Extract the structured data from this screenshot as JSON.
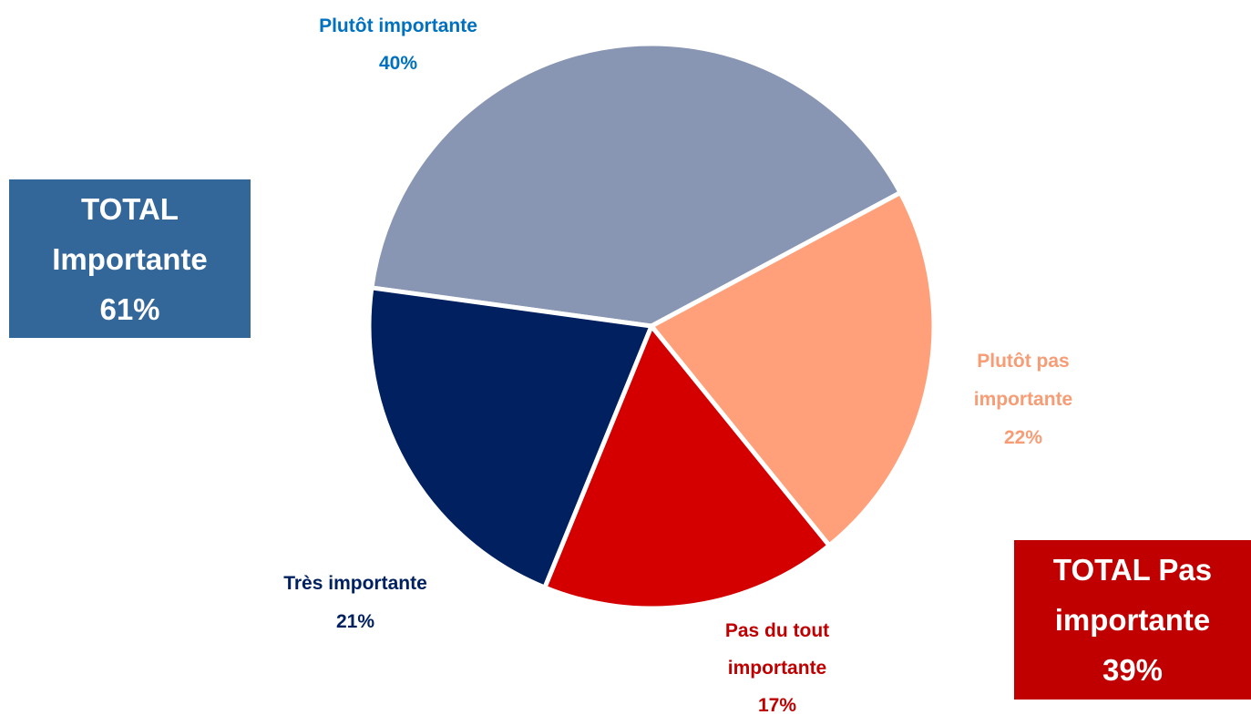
{
  "chart_data": {
    "type": "pie",
    "categories": [
      "Plutôt importante",
      "Plutôt pas importante",
      "Pas du tout importante",
      "Très importante"
    ],
    "values": [
      40,
      22,
      17,
      21
    ],
    "value_labels": [
      "40%",
      "22%",
      "17%",
      "21%"
    ],
    "colors": [
      "#8896b3",
      "#ffa07a",
      "#d40000",
      "#002060"
    ],
    "label_colors": [
      "#0070c0",
      "#f79c74",
      "#c00000",
      "#002060"
    ],
    "annotations": [
      {
        "text": "TOTAL Importante",
        "value": 61,
        "value_label": "61%",
        "color": "#336699"
      },
      {
        "text": "TOTAL Pas importante",
        "value": 39,
        "value_label": "39%",
        "color": "#c00000"
      }
    ]
  }
}
